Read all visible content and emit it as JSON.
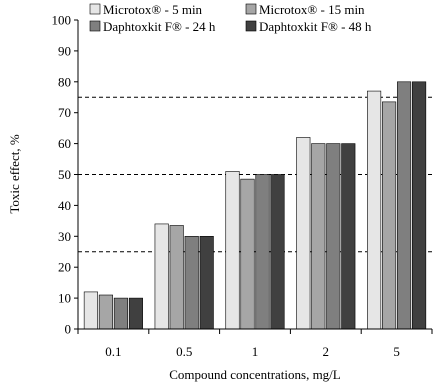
{
  "chart_data": {
    "type": "bar",
    "xlabel": "Compound concentrations, mg/L",
    "ylabel": "Toxic effect, %",
    "ylim": [
      0,
      100
    ],
    "yticks": [
      0,
      10,
      20,
      30,
      40,
      50,
      60,
      70,
      80,
      90,
      100
    ],
    "categories": [
      "0.1",
      "0.5",
      "1",
      "2",
      "5"
    ],
    "reference_lines": [
      25,
      50,
      75
    ],
    "grid": false,
    "legend_position": "top",
    "series": [
      {
        "name": "Microtox® - 5 min",
        "color": "#e6e6e6",
        "values": [
          12,
          34,
          51,
          62,
          77
        ]
      },
      {
        "name": "Microtox® - 15 min",
        "color": "#a6a6a6",
        "values": [
          11,
          33.5,
          48.5,
          60,
          73.5
        ]
      },
      {
        "name": "Daphtoxkit F® - 24 h",
        "color": "#7f7f7f",
        "values": [
          10,
          30,
          50,
          60,
          80
        ]
      },
      {
        "name": "Daphtoxkit F® - 48 h",
        "color": "#404040",
        "values": [
          10,
          30,
          50,
          60,
          80
        ]
      }
    ]
  }
}
